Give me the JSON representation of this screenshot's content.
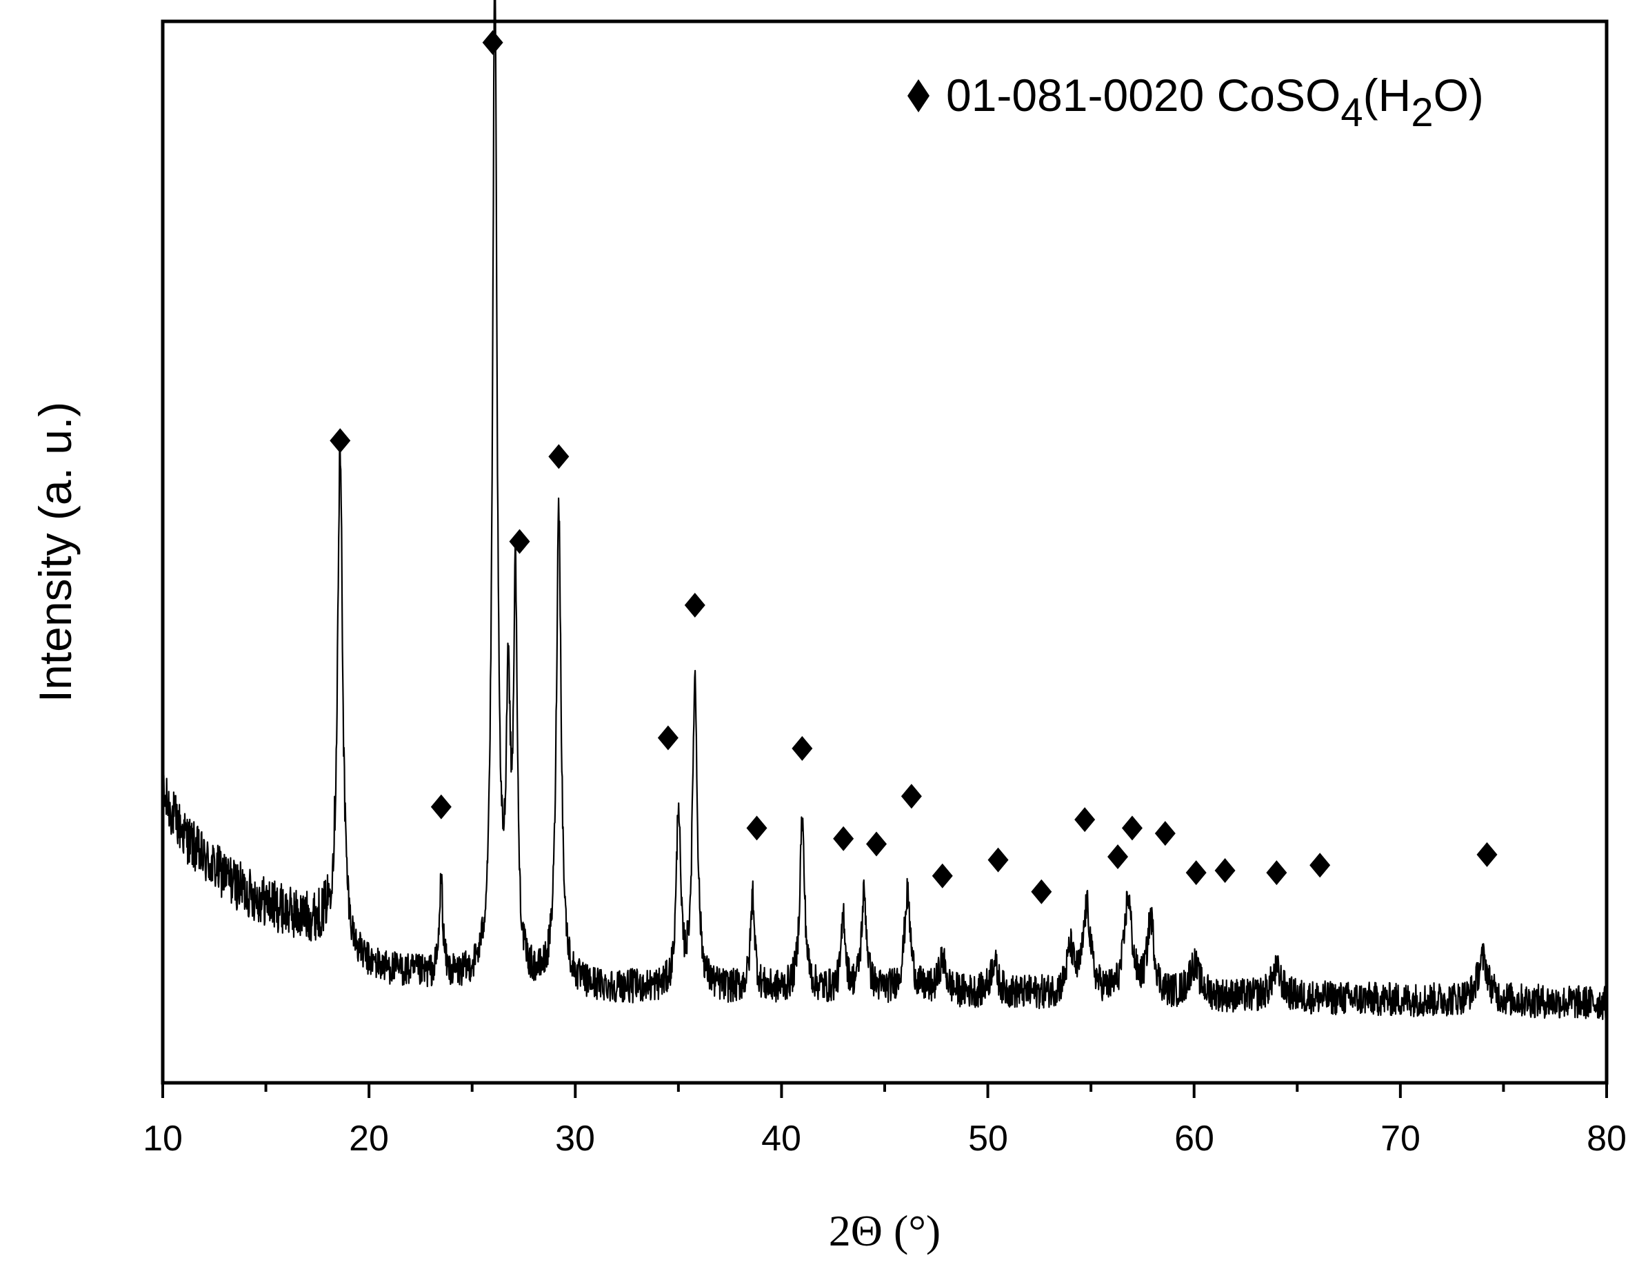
{
  "chart_data": {
    "type": "line",
    "xlabel": "2Θ (°)",
    "ylabel": "Intensity (a. u.)",
    "xlim": [
      10,
      80
    ],
    "ylim": [
      0,
      100
    ],
    "y_tick_labels_shown": false,
    "grid": false,
    "xticks": [
      10,
      20,
      30,
      40,
      50,
      60,
      70,
      80
    ],
    "tick_labels": [
      "10",
      "20",
      "30",
      "40",
      "50",
      "60",
      "70",
      "80"
    ],
    "legend": {
      "position": "top-right",
      "marker": "diamond",
      "text": "01-081-0020 CoSO",
      "sub1": "4",
      "mid": "(H",
      "sub2": "2",
      "end": "O)"
    },
    "series": [
      {
        "color": "#000000",
        "baseline": [
          [
            10,
            27.0
          ],
          [
            11,
            23.5
          ],
          [
            12,
            21.0
          ],
          [
            13,
            19.5
          ],
          [
            14,
            18.0
          ],
          [
            15,
            17.0
          ],
          [
            16,
            16.0
          ],
          [
            17,
            15.3
          ],
          [
            18,
            14.8
          ],
          [
            19,
            12.0
          ],
          [
            20,
            11.0
          ],
          [
            21,
            10.6
          ],
          [
            22,
            10.3
          ],
          [
            23,
            10.0
          ],
          [
            24,
            9.8
          ],
          [
            25,
            9.7
          ],
          [
            26,
            9.6
          ],
          [
            27,
            9.5
          ],
          [
            28,
            9.3
          ],
          [
            30,
            9.0
          ],
          [
            35,
            8.8
          ],
          [
            40,
            8.7
          ],
          [
            45,
            8.6
          ],
          [
            50,
            8.4
          ],
          [
            55,
            8.3
          ],
          [
            60,
            8.1
          ],
          [
            65,
            8.0
          ],
          [
            70,
            7.8
          ],
          [
            75,
            7.7
          ],
          [
            80,
            7.5
          ]
        ],
        "noise_amplitude": 1.6,
        "peaks": [
          {
            "x": 18.6,
            "height": 46,
            "width": 0.15
          },
          {
            "x": 23.5,
            "height": 9,
            "width": 0.1
          },
          {
            "x": 26.1,
            "height": 94,
            "width": 0.13
          },
          {
            "x": 26.75,
            "height": 25,
            "width": 0.12
          },
          {
            "x": 27.1,
            "height": 36,
            "width": 0.11
          },
          {
            "x": 29.2,
            "height": 45,
            "width": 0.14
          },
          {
            "x": 35.0,
            "height": 17,
            "width": 0.12
          },
          {
            "x": 35.8,
            "height": 29,
            "width": 0.14
          },
          {
            "x": 38.6,
            "height": 9,
            "width": 0.12
          },
          {
            "x": 41.0,
            "height": 16,
            "width": 0.14
          },
          {
            "x": 43.0,
            "height": 7,
            "width": 0.12
          },
          {
            "x": 44.0,
            "height": 9,
            "width": 0.15
          },
          {
            "x": 46.1,
            "height": 9,
            "width": 0.18
          },
          {
            "x": 47.8,
            "height": 3,
            "width": 0.2
          },
          {
            "x": 50.3,
            "height": 3,
            "width": 0.2
          },
          {
            "x": 54.0,
            "height": 4,
            "width": 0.2
          },
          {
            "x": 54.8,
            "height": 8,
            "width": 0.22
          },
          {
            "x": 56.8,
            "height": 9,
            "width": 0.22
          },
          {
            "x": 57.9,
            "height": 7,
            "width": 0.2
          },
          {
            "x": 60.0,
            "height": 3,
            "width": 0.3
          },
          {
            "x": 64.0,
            "height": 2.5,
            "width": 0.3
          },
          {
            "x": 74.0,
            "height": 4,
            "width": 0.3
          }
        ]
      }
    ],
    "markers": [
      {
        "x": 18.6,
        "y": 60.5
      },
      {
        "x": 23.5,
        "y": 26.0
      },
      {
        "x": 26.0,
        "y": 98.0
      },
      {
        "x": 27.3,
        "y": 51.0
      },
      {
        "x": 29.2,
        "y": 59.0
      },
      {
        "x": 34.5,
        "y": 32.5
      },
      {
        "x": 35.8,
        "y": 45.0
      },
      {
        "x": 41.0,
        "y": 31.5
      },
      {
        "x": 38.8,
        "y": 24.0
      },
      {
        "x": 43.0,
        "y": 23.0
      },
      {
        "x": 44.6,
        "y": 22.5
      },
      {
        "x": 46.3,
        "y": 27.0
      },
      {
        "x": 47.8,
        "y": 19.5
      },
      {
        "x": 50.5,
        "y": 21.0
      },
      {
        "x": 52.6,
        "y": 18.0
      },
      {
        "x": 54.7,
        "y": 24.8
      },
      {
        "x": 56.3,
        "y": 21.3
      },
      {
        "x": 57.0,
        "y": 24.0
      },
      {
        "x": 58.6,
        "y": 23.5
      },
      {
        "x": 60.1,
        "y": 19.8
      },
      {
        "x": 61.5,
        "y": 20.0
      },
      {
        "x": 64.0,
        "y": 19.8
      },
      {
        "x": 66.1,
        "y": 20.5
      },
      {
        "x": 74.2,
        "y": 21.5
      }
    ]
  }
}
